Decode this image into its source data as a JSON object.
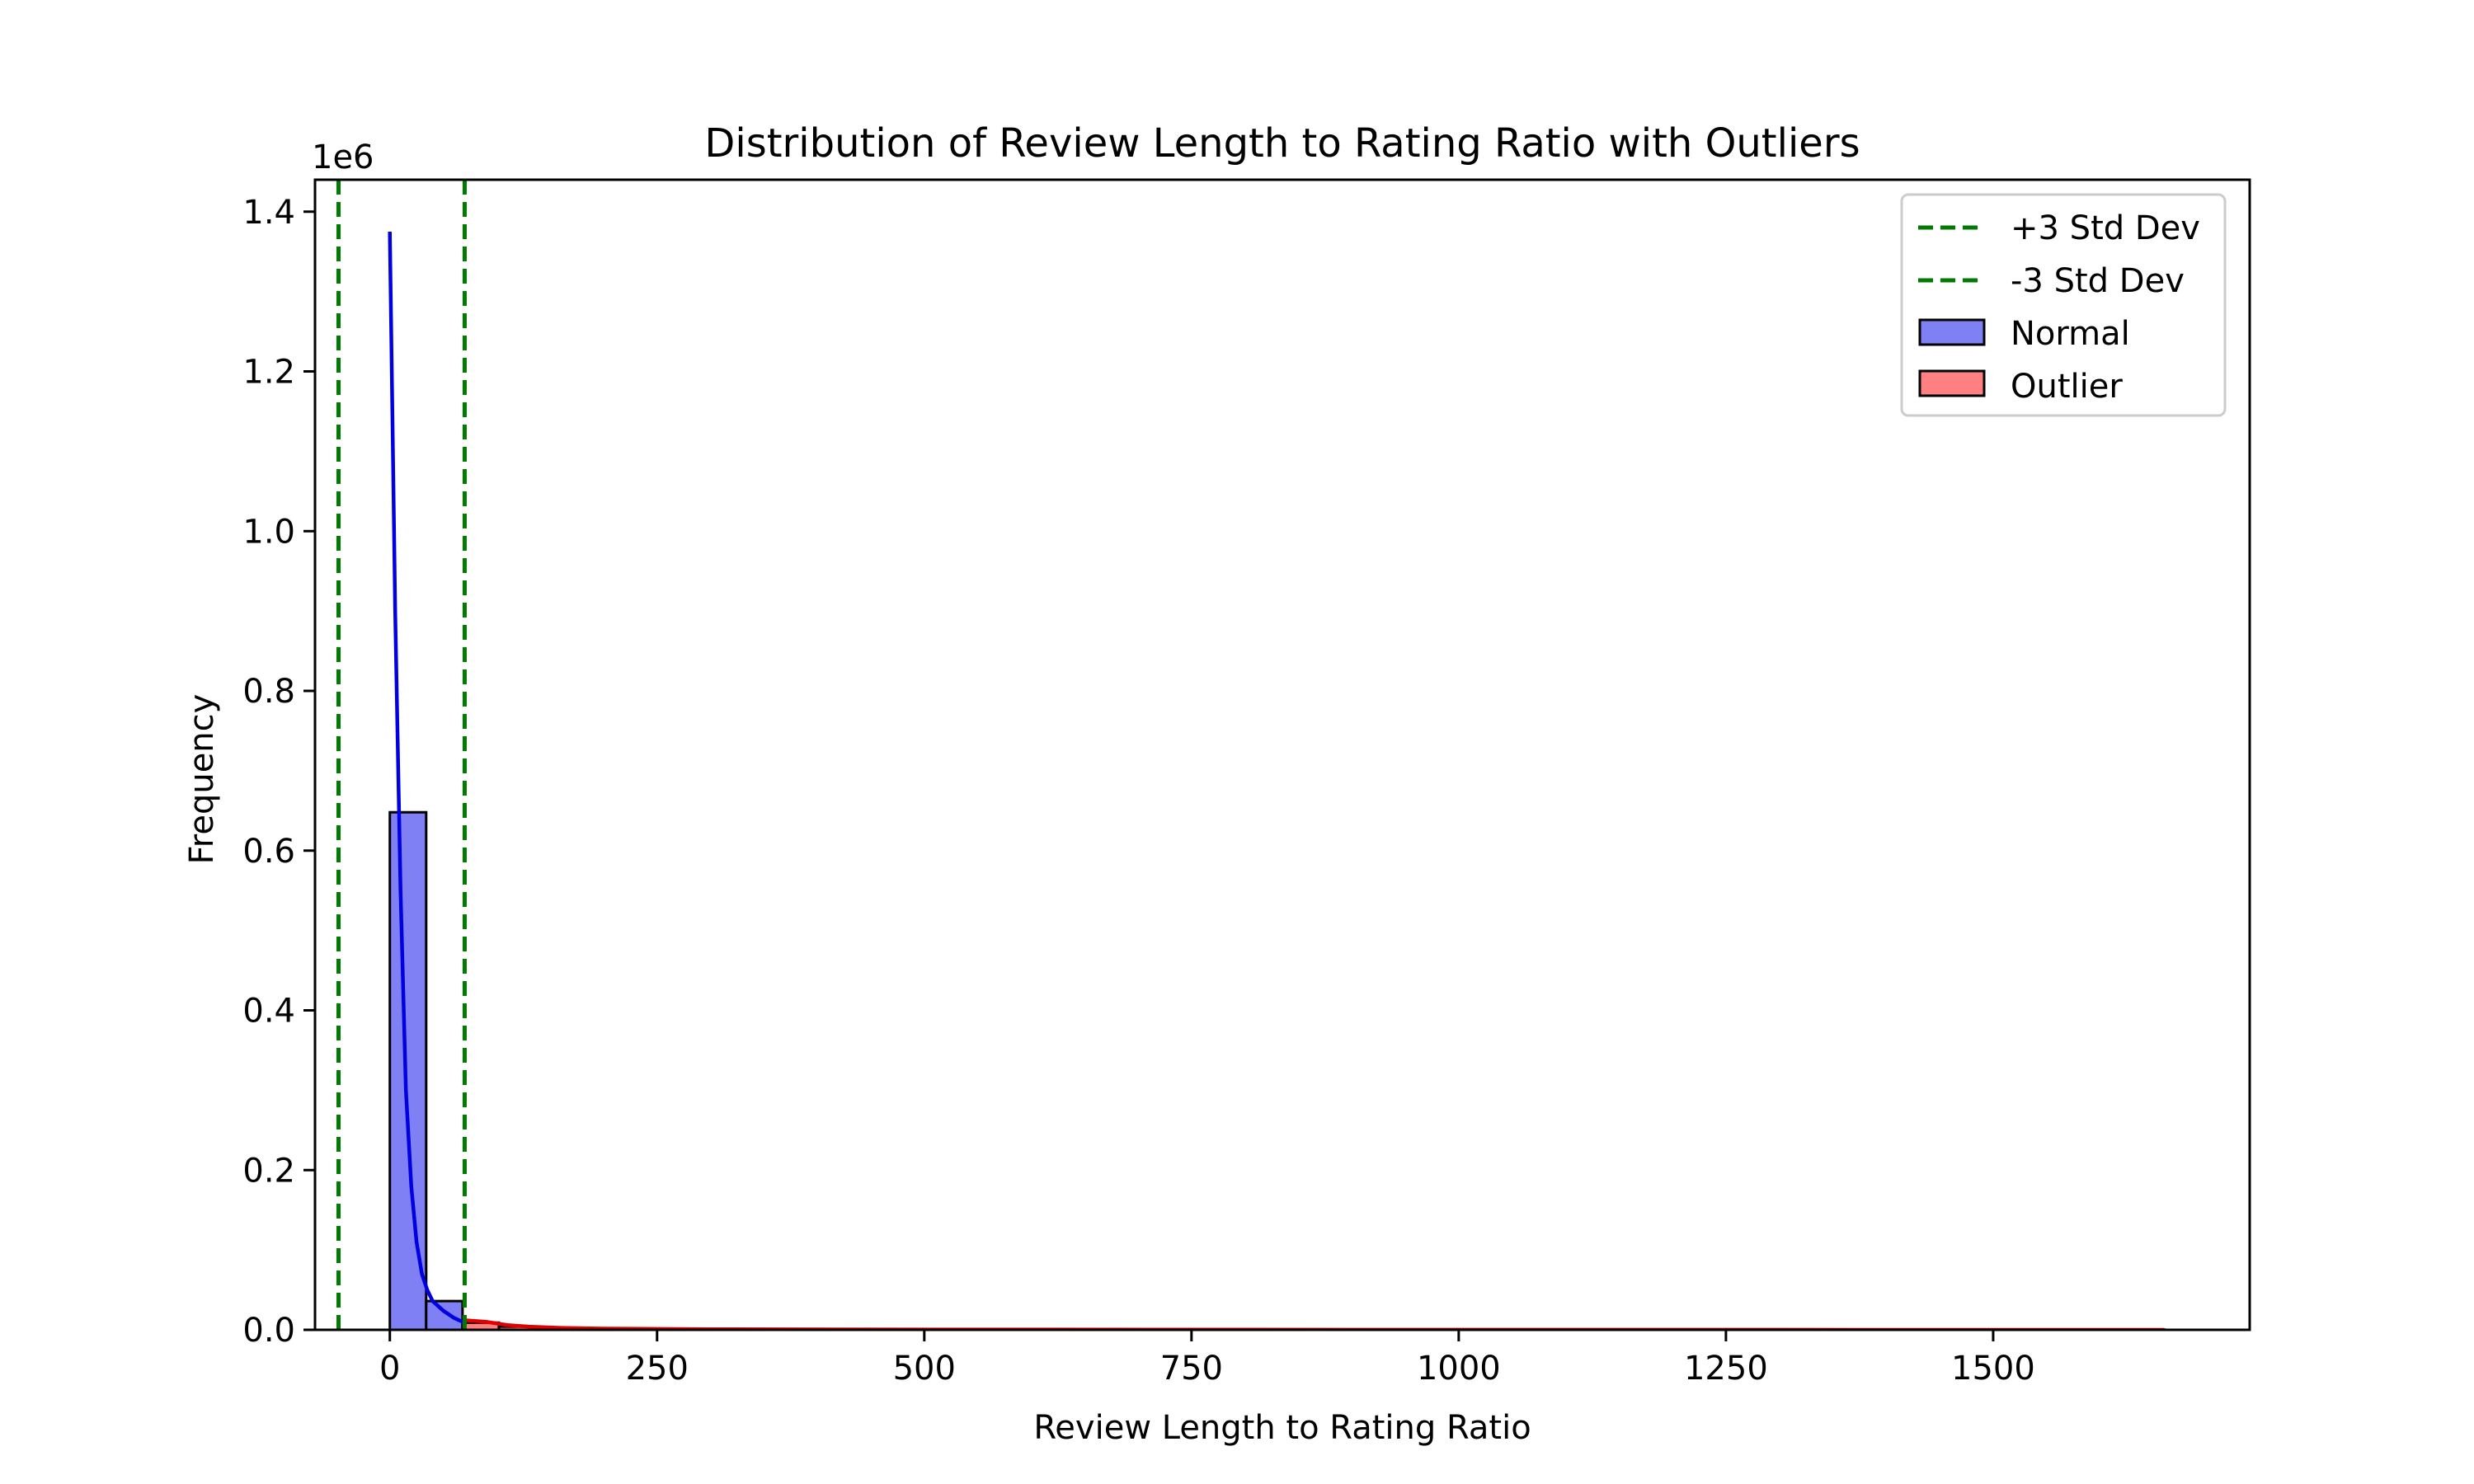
{
  "chart_data": {
    "type": "histogram",
    "title": "Distribution of Review Length to Rating Ratio with Outliers",
    "xlabel": "Review Length to Rating Ratio",
    "ylabel": "Frequency",
    "y_multiplier_label": "1e6",
    "xlim": [
      -70,
      1740
    ],
    "ylim": [
      0,
      1.44
    ],
    "x_ticks": [
      0,
      250,
      500,
      750,
      1000,
      1250,
      1500
    ],
    "y_ticks": [
      0.0,
      0.2,
      0.4,
      0.6,
      0.8,
      1.0,
      1.2,
      1.4
    ],
    "y_tick_labels": [
      "0.0",
      "0.2",
      "0.4",
      "0.6",
      "0.8",
      "1.0",
      "1.2",
      "1.4"
    ],
    "grid": false,
    "legend_position": "top-right",
    "colors": {
      "normal_fill": "#8080f5",
      "normal_kde": "#0000e0",
      "outlier_fill": "#ff8080",
      "outlier_kde": "#e00000",
      "std_lines": "#007a00",
      "edge": "#000000"
    },
    "series": [
      {
        "name": "Normal",
        "type": "bar",
        "bins": [
          {
            "x0": 0,
            "x1": 34,
            "value": 0.648
          },
          {
            "x0": 34,
            "x1": 68,
            "value": 0.036
          },
          {
            "x0": 68,
            "x1": 72,
            "value": 0.006
          }
        ],
        "kde": [
          [
            0,
            1.375
          ],
          [
            5,
            0.9
          ],
          [
            10,
            0.55
          ],
          [
            15,
            0.3
          ],
          [
            20,
            0.18
          ],
          [
            25,
            0.11
          ],
          [
            30,
            0.07
          ],
          [
            35,
            0.05
          ],
          [
            40,
            0.036
          ],
          [
            50,
            0.024
          ],
          [
            60,
            0.015
          ],
          [
            68,
            0.01
          ],
          [
            72,
            0.008
          ]
        ]
      },
      {
        "name": "Outlier",
        "type": "bar",
        "bins": [
          {
            "x0": 68,
            "x1": 102,
            "value": 0.009
          },
          {
            "x0": 102,
            "x1": 136,
            "value": 0.004
          },
          {
            "x0": 136,
            "x1": 250,
            "value": 0.0015
          },
          {
            "x0": 250,
            "x1": 1660,
            "value": 0.0003
          }
        ],
        "kde": [
          [
            70,
            0.012
          ],
          [
            90,
            0.01
          ],
          [
            110,
            0.006
          ],
          [
            130,
            0.004
          ],
          [
            160,
            0.0025
          ],
          [
            200,
            0.0015
          ],
          [
            300,
            0.0008
          ],
          [
            500,
            0.0004
          ],
          [
            800,
            0.0002
          ],
          [
            1200,
            0.0001
          ],
          [
            1660,
            0.0
          ]
        ]
      },
      {
        "name": "+3 Std Dev",
        "type": "vline",
        "x": 70
      },
      {
        "name": "-3 Std Dev",
        "type": "vline",
        "x": -48
      }
    ]
  }
}
